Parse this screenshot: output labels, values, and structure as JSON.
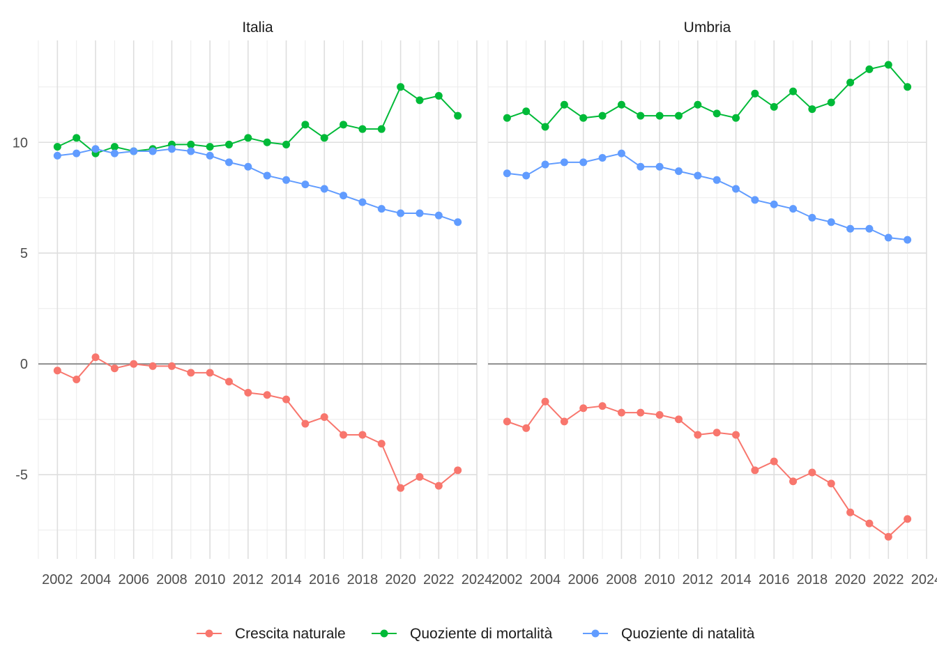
{
  "chart_data": {
    "type": "line",
    "facets": [
      {
        "title": "Italia",
        "x": [
          2002,
          2003,
          2004,
          2005,
          2006,
          2007,
          2008,
          2009,
          2010,
          2011,
          2012,
          2013,
          2014,
          2015,
          2016,
          2017,
          2018,
          2019,
          2020,
          2021,
          2022,
          2023
        ],
        "series": [
          {
            "name": "Crescita naturale",
            "color": "#F8766D",
            "values": [
              -0.3,
              -0.7,
              0.3,
              -0.2,
              0.0,
              -0.1,
              -0.1,
              -0.4,
              -0.4,
              -0.8,
              -1.3,
              -1.4,
              -1.6,
              -2.7,
              -2.4,
              -3.2,
              -3.2,
              -3.6,
              -5.6,
              -5.1,
              -5.5,
              -4.8
            ]
          },
          {
            "name": "Quoziente di mortalità",
            "color": "#00BA38",
            "values": [
              9.8,
              10.2,
              9.5,
              9.8,
              9.6,
              9.7,
              9.9,
              9.9,
              9.8,
              9.9,
              10.2,
              10.0,
              9.9,
              10.8,
              10.2,
              10.8,
              10.6,
              10.6,
              12.5,
              11.9,
              12.1,
              11.2
            ]
          },
          {
            "name": "Quoziente di natalità",
            "color": "#619CFF",
            "values": [
              9.4,
              9.5,
              9.7,
              9.5,
              9.6,
              9.6,
              9.7,
              9.6,
              9.4,
              9.1,
              8.9,
              8.5,
              8.3,
              8.1,
              7.9,
              7.6,
              7.3,
              7.0,
              6.8,
              6.8,
              6.7,
              6.4
            ]
          }
        ]
      },
      {
        "title": "Umbria",
        "x": [
          2002,
          2003,
          2004,
          2005,
          2006,
          2007,
          2008,
          2009,
          2010,
          2011,
          2012,
          2013,
          2014,
          2015,
          2016,
          2017,
          2018,
          2019,
          2020,
          2021,
          2022,
          2023
        ],
        "series": [
          {
            "name": "Crescita naturale",
            "color": "#F8766D",
            "values": [
              -2.6,
              -2.9,
              -1.7,
              -2.6,
              -2.0,
              -1.9,
              -2.2,
              -2.2,
              -2.3,
              -2.5,
              -3.2,
              -3.1,
              -3.2,
              -4.8,
              -4.4,
              -5.3,
              -4.9,
              -5.4,
              -6.7,
              -7.2,
              -7.8,
              -7.0
            ]
          },
          {
            "name": "Quoziente di mortalità",
            "color": "#00BA38",
            "values": [
              11.1,
              11.4,
              10.7,
              11.7,
              11.1,
              11.2,
              11.7,
              11.2,
              11.2,
              11.2,
              11.7,
              11.3,
              11.1,
              12.2,
              11.6,
              12.3,
              11.5,
              11.8,
              12.7,
              13.3,
              13.5,
              12.5
            ]
          },
          {
            "name": "Quoziente di natalità",
            "color": "#619CFF",
            "values": [
              8.6,
              8.5,
              9.0,
              9.1,
              9.1,
              9.3,
              9.5,
              8.9,
              8.9,
              8.7,
              8.5,
              8.3,
              7.9,
              7.4,
              7.2,
              7.0,
              6.6,
              6.4,
              6.1,
              6.1,
              5.7,
              5.6
            ]
          }
        ]
      }
    ],
    "x_ticks": [
      "2002",
      "2004",
      "2006",
      "2008",
      "2010",
      "2012",
      "2014",
      "2016",
      "2018",
      "2020",
      "2022",
      "2024"
    ],
    "y_ticks": [
      "-5",
      "0",
      "5",
      "10"
    ],
    "xlim": [
      2001,
      2024
    ],
    "ylim": [
      -8.8,
      14.6
    ],
    "reference_line_y": 0,
    "grid": true,
    "legend_position": "bottom",
    "legend": [
      "Crescita naturale",
      "Quoziente di mortalità",
      "Quoziente di natalità"
    ]
  }
}
